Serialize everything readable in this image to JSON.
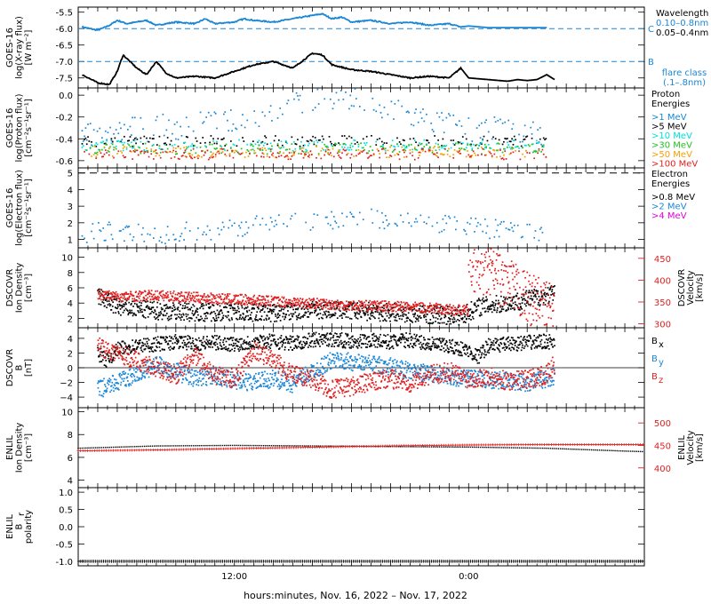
{
  "colors": {
    "black": "#000000",
    "blue": "#1a86d6",
    "cyan": "#00e0e0",
    "green": "#22c022",
    "orange": "#f5a000",
    "red": "#e02020",
    "magenta": "#e000e0"
  },
  "x_axis": {
    "label": "hours:minutes, Nov. 16, 2022 – Nov. 17, 2022",
    "tick_labels": [
      {
        "hour": 12,
        "text": "12:00"
      },
      {
        "hour": 24,
        "text": "0:00"
      }
    ],
    "range_hours": [
      4,
      33
    ]
  },
  "chart_data": [
    {
      "type": "line",
      "id": "xray",
      "ylabel": "GOES-16 log(X-ray flux) [W m-2]",
      "ylabel_lines": [
        "GOES-16",
        "log(X-ray flux)",
        "[W m⁻²]"
      ],
      "ylim": [
        -7.75,
        -5.4
      ],
      "yticks": [
        -7.5,
        -7.0,
        -6.5,
        -6.0,
        -5.5
      ],
      "ytick_labels": [
        "-7.5",
        "-7.0",
        "-6.5",
        "-6.0",
        "-5.5"
      ],
      "flare_class_lines": [
        {
          "value": -6.0,
          "label": "C"
        },
        {
          "value": -7.0,
          "label": "B"
        }
      ],
      "legend": {
        "title": "Wavelength",
        "entries": [
          "0.10–0.8nm",
          "0.05–0.4nm"
        ]
      },
      "flare_class_note": [
        "flare class",
        "(.1–.8nm)"
      ],
      "series": [
        {
          "name": "0.10–0.8nm",
          "color_key": "blue",
          "x": [
            4.2,
            5.0,
            5.6,
            6.0,
            6.5,
            7.0,
            7.5,
            8.0,
            9.0,
            10.0,
            10.5,
            11.0,
            12.0,
            12.5,
            13.0,
            14.0,
            15.0,
            16.0,
            16.5,
            17.0,
            17.5,
            18.0,
            19.0,
            20.0,
            21.0,
            22.0,
            23.0,
            23.6,
            24.0,
            25.0,
            26.0,
            27.0,
            28.0
          ],
          "y": [
            -5.95,
            -6.05,
            -5.9,
            -5.75,
            -5.85,
            -5.8,
            -5.75,
            -5.9,
            -5.8,
            -5.85,
            -5.7,
            -5.85,
            -5.8,
            -5.7,
            -5.75,
            -5.8,
            -5.7,
            -5.6,
            -5.55,
            -5.7,
            -5.65,
            -5.8,
            -5.75,
            -5.85,
            -5.8,
            -5.9,
            -5.85,
            -5.95,
            -5.92,
            -5.97,
            -5.97,
            -5.97,
            -5.97
          ]
        },
        {
          "name": "0.05–0.4nm",
          "color_key": "black",
          "x": [
            4.2,
            5.0,
            5.6,
            6.0,
            6.3,
            7.0,
            7.5,
            8.0,
            8.5,
            9.0,
            10.0,
            11.0,
            12.0,
            13.0,
            14.0,
            15.0,
            16.0,
            16.5,
            17.0,
            18.0,
            19.0,
            20.0,
            21.0,
            22.0,
            23.0,
            23.6,
            24.0,
            25.0,
            26.0,
            26.5,
            27.0,
            27.5,
            28.0,
            28.4
          ],
          "y": [
            -7.4,
            -7.65,
            -7.7,
            -7.3,
            -6.8,
            -7.2,
            -7.4,
            -7.0,
            -7.35,
            -7.5,
            -7.45,
            -7.5,
            -7.3,
            -7.1,
            -7.0,
            -7.2,
            -6.75,
            -6.8,
            -7.1,
            -7.25,
            -7.3,
            -7.4,
            -7.5,
            -7.45,
            -7.5,
            -7.2,
            -7.5,
            -7.55,
            -7.6,
            -7.55,
            -7.58,
            -7.55,
            -7.4,
            -7.55
          ]
        }
      ]
    },
    {
      "type": "scatter",
      "id": "proton",
      "ylabel": "GOES-16 log(Proton flux) [cm-2 s-1 sr-1]",
      "ylabel_lines": [
        "GOES-16",
        "log(Proton flux)",
        "[cm⁻²s⁻¹sr⁻¹]"
      ],
      "ylim": [
        -0.65,
        0.05
      ],
      "yticks": [
        -0.6,
        -0.4,
        -0.2,
        0.0
      ],
      "ytick_labels": [
        "-0.6",
        "-0.4",
        "-0.2",
        "0.0"
      ],
      "legend": {
        "title_lines": [
          "Proton",
          "Energies"
        ],
        "entries": [
          {
            "label": ">1 MeV",
            "color_key": "blue"
          },
          {
            "label": ">5 MeV",
            "color_key": "black"
          },
          {
            "label": ">10 MeV",
            "color_key": "cyan"
          },
          {
            "label": ">30 MeV",
            "color_key": "green"
          },
          {
            "label": ">50 MeV",
            "color_key": "orange"
          },
          {
            "label": ">100 MeV",
            "color_key": "red"
          }
        ]
      },
      "series": [
        {
          "name": ">1 MeV",
          "color_key": "blue",
          "x_range": [
            4.2,
            28.0
          ],
          "x": [
            4,
            8,
            12,
            14,
            16,
            17,
            18,
            20,
            24,
            28
          ],
          "y": [
            -0.35,
            -0.3,
            -0.25,
            -0.15,
            -0.05,
            -0.02,
            -0.05,
            -0.15,
            -0.3,
            -0.35
          ],
          "spread": 0.12
        },
        {
          "name": ">5 MeV",
          "color_key": "black",
          "x_range": [
            4.2,
            28.0
          ],
          "x": [
            4,
            28
          ],
          "y": [
            -0.42,
            -0.42
          ],
          "spread": 0.05
        },
        {
          "name": ">10 MeV",
          "color_key": "cyan",
          "x_range": [
            4.2,
            28.0
          ],
          "x": [
            4,
            28
          ],
          "y": [
            -0.46,
            -0.46
          ],
          "spread": 0.05
        },
        {
          "name": ">30 MeV",
          "color_key": "green",
          "x_range": [
            4.2,
            28.0
          ],
          "x": [
            4,
            28
          ],
          "y": [
            -0.49,
            -0.49
          ],
          "spread": 0.05
        },
        {
          "name": ">50 MeV",
          "color_key": "orange",
          "x_range": [
            4.2,
            28.0
          ],
          "x": [
            4,
            28
          ],
          "y": [
            -0.52,
            -0.52
          ],
          "spread": 0.05
        },
        {
          "name": ">100 MeV",
          "color_key": "red",
          "x_range": [
            4.2,
            28.0
          ],
          "x": [
            4,
            28
          ],
          "y": [
            -0.54,
            -0.54
          ],
          "spread": 0.05
        }
      ]
    },
    {
      "type": "scatter",
      "id": "electron",
      "ylabel": "GOES-16 log(Electron flux) [cm-2 s-1 sr-1]",
      "ylabel_lines": [
        "GOES-16",
        "log(Electron flux)",
        "[cm⁻²s⁻¹sr⁻¹]"
      ],
      "ylim": [
        0.6,
        5.2
      ],
      "yticks": [
        1,
        2,
        3,
        4,
        5
      ],
      "ytick_labels": [
        "1",
        "2",
        "3",
        "4",
        "5"
      ],
      "dashed_reference": 5.0,
      "legend": {
        "title_lines": [
          "Electron",
          "Energies"
        ],
        "entries": [
          {
            "label": ">0.8 MeV",
            "color_key": "black"
          },
          {
            "label": ">2 MeV",
            "color_key": "blue"
          },
          {
            "label": ">4 MeV",
            "color_key": "magenta"
          }
        ]
      },
      "series": [
        {
          "name": ">2 MeV",
          "color_key": "blue",
          "x_range": [
            4.2,
            28.0
          ],
          "x": [
            4,
            6,
            8,
            10,
            12,
            14,
            16,
            18,
            20,
            22,
            24,
            26,
            28
          ],
          "y": [
            1.4,
            1.5,
            1.3,
            1.5,
            1.7,
            1.9,
            2.1,
            2.3,
            2.2,
            2.0,
            1.8,
            1.5,
            1.2
          ],
          "spread": 0.6
        }
      ]
    },
    {
      "type": "scatter",
      "id": "dscovr_plasma",
      "ylabel": "DSCOVR Ion Density [cm-3]",
      "ylabel_lines": [
        "DSCOVR",
        "Ion Density",
        "[cm⁻³]"
      ],
      "ylim": [
        1,
        11
      ],
      "yticks": [
        2,
        4,
        6,
        8,
        10
      ],
      "ytick_labels": [
        "2",
        "4",
        "6",
        "8",
        "10"
      ],
      "right_axis": {
        "label": "DSCOVR Velocity [km/s]",
        "label_lines": [
          "DSCOVR",
          "Velocity",
          "[km/s]"
        ],
        "ylim": [
          295,
          470
        ],
        "yticks": [
          300,
          350,
          400,
          450
        ],
        "ytick_labels": [
          "300",
          "350",
          "400",
          "450"
        ],
        "color_key": "red"
      },
      "series": [
        {
          "name": "Ion Density",
          "color_key": "black",
          "axis": "left",
          "x_range": [
            5.0,
            28.4
          ],
          "x": [
            5,
            6,
            8,
            10,
            12,
            14,
            16,
            18,
            20,
            22,
            23.6,
            24.5,
            26,
            27,
            28.4
          ],
          "y": [
            5,
            3.5,
            3,
            2.8,
            2.9,
            2.7,
            3.2,
            3.0,
            2.8,
            2.5,
            2.3,
            3.5,
            4,
            4.5,
            5.2
          ],
          "spread": 1.2
        },
        {
          "name": "Velocity",
          "color_key": "red",
          "axis": "right",
          "x_range": [
            5.0,
            24.0
          ],
          "x": [
            5,
            6,
            8,
            10,
            12,
            14,
            16,
            18,
            20,
            22,
            24
          ],
          "y": [
            368,
            362,
            365,
            360,
            356,
            352,
            347,
            342,
            340,
            336,
            330
          ],
          "spread": 12
        },
        {
          "name": "Velocity",
          "color_key": "red",
          "axis": "right",
          "x_range": [
            24.0,
            28.4
          ],
          "x": [
            24,
            25,
            26,
            27,
            28.4
          ],
          "y": [
            440,
            420,
            390,
            360,
            330
          ],
          "spread": 60
        }
      ]
    },
    {
      "type": "line",
      "id": "dscovr_mag",
      "ylabel": "DSCOVR B [nT]",
      "ylabel_lines": [
        "DSCOVR",
        "B",
        "[nT]"
      ],
      "ylim": [
        -5.2,
        5.2
      ],
      "yticks": [
        -4,
        -2,
        0,
        2,
        4
      ],
      "ytick_labels": [
        "−4",
        "−2",
        "0",
        "2",
        "4"
      ],
      "legend": {
        "entries": [
          {
            "label": "B",
            "sub": "x",
            "color_key": "black"
          },
          {
            "label": "B",
            "sub": "y",
            "color_key": "blue"
          },
          {
            "label": "B",
            "sub": "z",
            "color_key": "red"
          }
        ]
      },
      "series": [
        {
          "name": "Bx",
          "color_key": "black",
          "x": [
            5,
            5.5,
            6,
            7,
            8,
            9,
            10,
            11,
            12,
            13,
            14,
            15,
            16,
            17,
            18,
            19,
            20,
            21,
            22,
            23,
            23.8,
            24.5,
            25,
            26,
            27,
            28,
            28.4
          ],
          "y": [
            2,
            1,
            2.5,
            3,
            3.2,
            3.5,
            3.3,
            3.4,
            3.2,
            3.5,
            3.6,
            3.3,
            3.8,
            3.9,
            3.6,
            3.7,
            3.5,
            3.8,
            3.2,
            2.9,
            2.5,
            1.5,
            3.0,
            3.2,
            3.4,
            3.6,
            3.3
          ],
          "spread": 1.0
        },
        {
          "name": "By",
          "color_key": "blue",
          "x": [
            5,
            6,
            7,
            8,
            9,
            10,
            11,
            12,
            13,
            14,
            15,
            16,
            17,
            18,
            19,
            20,
            21,
            22,
            23,
            24,
            25,
            26,
            27,
            28,
            28.4
          ],
          "y": [
            -3,
            -2,
            -1,
            0.5,
            -0.5,
            -1.5,
            -1,
            -1.8,
            -2,
            -1.5,
            -2.2,
            -0.5,
            1,
            0.8,
            0.5,
            0.2,
            -0.5,
            -0.8,
            -1.2,
            -1.5,
            -1.6,
            -1.8,
            -2,
            -1.5,
            -1.2
          ],
          "spread": 1.2
        },
        {
          "name": "Bz",
          "color_key": "red",
          "x": [
            5,
            6,
            7,
            8,
            9,
            10,
            11,
            12,
            13,
            14,
            15,
            16,
            17,
            18,
            19,
            20,
            21,
            22,
            23,
            24,
            25,
            26,
            27,
            28,
            28.4
          ],
          "y": [
            3,
            2,
            1,
            0,
            -1,
            1.5,
            -1,
            -1.5,
            2.5,
            1,
            -1,
            -1.5,
            -3,
            -2.5,
            -2,
            -1.5,
            -2,
            -1,
            -0.5,
            -1.5,
            -1.2,
            -1.8,
            -1.5,
            -1.0,
            0.5
          ],
          "spread": 1.3
        }
      ]
    },
    {
      "type": "line",
      "id": "enlil_plasma",
      "ylabel": "ENLIL Ion Density [cm-3]",
      "ylabel_lines": [
        "ENLIL",
        "Ion Density",
        "[cm⁻³]"
      ],
      "ylim": [
        3.5,
        10.2
      ],
      "yticks": [
        4,
        6,
        8,
        10
      ],
      "ytick_labels": [
        "4",
        "6",
        "8",
        "10"
      ],
      "right_axis": {
        "label": "ENLIL Velocity [km/s]",
        "label_lines": [
          "ENLIL",
          "Velocity",
          "[km/s]"
        ],
        "ylim": [
          360,
          530
        ],
        "yticks": [
          400,
          450,
          500
        ],
        "ytick_labels": [
          "400",
          "450",
          "500"
        ],
        "color_key": "red"
      },
      "series": [
        {
          "name": "Ion Density",
          "color_key": "black",
          "axis": "left",
          "x": [
            4,
            8,
            12,
            16,
            20,
            24,
            28,
            32,
            33
          ],
          "y": [
            6.8,
            7.0,
            7.05,
            7.0,
            6.95,
            6.9,
            6.8,
            6.55,
            6.5
          ]
        },
        {
          "name": "Velocity",
          "color_key": "red",
          "axis": "right",
          "x": [
            4,
            8,
            12,
            16,
            20,
            24,
            28,
            32,
            33
          ],
          "y": [
            438,
            440,
            443,
            446,
            449,
            451,
            452,
            452,
            452
          ]
        }
      ]
    },
    {
      "type": "line",
      "id": "enlil_polarity",
      "ylabel": "ENLIL Br polarity",
      "ylabel_lines": [
        "ENLIL",
        "B",
        "polarity"
      ],
      "ylim": [
        -1.08,
        1.08
      ],
      "yticks": [
        -1.0,
        -0.5,
        0.0,
        0.5,
        1.0
      ],
      "ytick_labels": [
        "-1.0",
        "-0.5",
        "0.0",
        "0.5",
        "1.0"
      ],
      "series": [
        {
          "name": "Br polarity",
          "color_key": "black",
          "x": [
            4,
            33
          ],
          "y": [
            -1.0,
            -1.0
          ]
        }
      ]
    }
  ]
}
